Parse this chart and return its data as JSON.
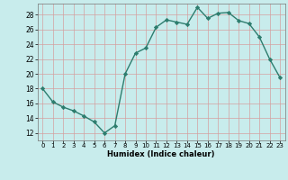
{
  "x": [
    0,
    1,
    2,
    3,
    4,
    5,
    6,
    7,
    8,
    9,
    10,
    11,
    12,
    13,
    14,
    15,
    16,
    17,
    18,
    19,
    20,
    21,
    22,
    23
  ],
  "y": [
    18,
    16.2,
    15.5,
    15,
    14.3,
    13.5,
    12,
    13,
    20,
    22.8,
    23.5,
    26.3,
    27.3,
    27,
    26.7,
    29,
    27.5,
    28.2,
    28.3,
    27.2,
    26.8,
    25,
    22,
    19.5
  ],
  "line_color": "#2d7d6e",
  "marker_color": "#2d7d6e",
  "bg_color": "#c8ecec",
  "grid_color": "#d4a0a0",
  "xlabel": "Humidex (Indice chaleur)",
  "xlim": [
    -0.5,
    23.5
  ],
  "ylim": [
    11,
    29.5
  ],
  "yticks": [
    12,
    14,
    16,
    18,
    20,
    22,
    24,
    26,
    28
  ],
  "xticks": [
    0,
    1,
    2,
    3,
    4,
    5,
    6,
    7,
    8,
    9,
    10,
    11,
    12,
    13,
    14,
    15,
    16,
    17,
    18,
    19,
    20,
    21,
    22,
    23
  ]
}
